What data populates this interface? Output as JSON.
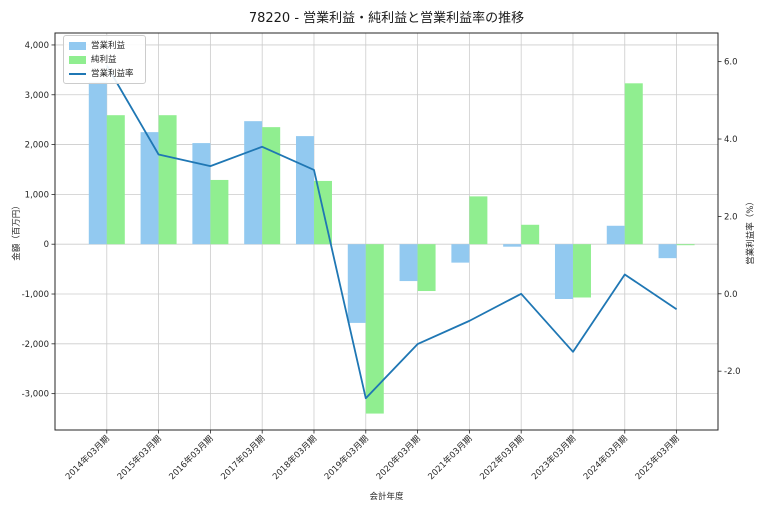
{
  "chart_data": {
    "type": "bar",
    "subtype": "grouped-bars-with-line-on-secondary-axis",
    "title": "78220 - 営業利益・純利益と営業利益率の推移",
    "xlabel": "会計年度",
    "ylabel_left": "金額（百万円）",
    "ylabel_right": "営業利益率（%）",
    "categories": [
      "2014年03月期",
      "2015年03月期",
      "2016年03月期",
      "2017年03月期",
      "2018年03月期",
      "2019年03月期",
      "2020年03月期",
      "2021年03月期",
      "2022年03月期",
      "2023年03月期",
      "2024年03月期",
      "2025年03月期"
    ],
    "series": [
      {
        "name": "営業利益",
        "kind": "bar",
        "axis": "left",
        "color": "#92c9f0",
        "values": [
          3260,
          2250,
          2030,
          2470,
          2170,
          -1580,
          -740,
          -370,
          -50,
          -1100,
          370,
          -280
        ]
      },
      {
        "name": "純利益",
        "kind": "bar",
        "axis": "left",
        "color": "#90ee90",
        "values": [
          2590,
          2590,
          1290,
          2350,
          1270,
          -3400,
          -940,
          960,
          390,
          -1070,
          3230,
          -20
        ]
      },
      {
        "name": "営業利益率",
        "kind": "line",
        "axis": "right",
        "color": "#1f77b4",
        "values": [
          5.9,
          3.6,
          3.3,
          3.8,
          3.2,
          -2.7,
          -1.3,
          -0.7,
          0.0,
          -1.5,
          0.5,
          -0.4
        ]
      }
    ],
    "yticks_left": {
      "labels": [
        "4,000",
        "3,000",
        "2,000",
        "1,000",
        "0",
        "-1,000",
        "-2,000",
        "-3,000"
      ],
      "values": [
        4000,
        3000,
        2000,
        1000,
        0,
        -1000,
        -2000,
        -3000
      ]
    },
    "yticks_right": {
      "labels": [
        "6.0",
        "4.0",
        "2.0",
        "0.0",
        "-2.0"
      ],
      "values": [
        6,
        4,
        2,
        0,
        -2
      ]
    },
    "ylim_left": [
      -3730,
      4240
    ],
    "ylim_right": [
      -3.52,
      6.74
    ],
    "xlim": [
      -1.0,
      11.8
    ],
    "grid": true,
    "legend_position": "upper left",
    "colors": {
      "grid": "#cccccc",
      "spine": "#262626",
      "text": "#262626",
      "background": "#ffffff"
    }
  }
}
